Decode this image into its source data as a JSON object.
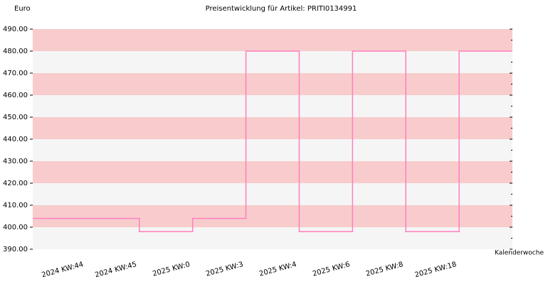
{
  "chart_data": {
    "type": "step",
    "title": "Preisentwicklung für Artikel: PRITI0134991",
    "y_label": "Euro",
    "x_label": "Kalenderwoche",
    "categories": [
      "2024 KW:44",
      "2024 KW:45",
      "2025 KW:0",
      "2025 KW:3",
      "2025 KW:4",
      "2025 KW:6",
      "2025 KW:8",
      "2025 KW:18"
    ],
    "values": [
      404,
      398,
      404,
      480,
      398,
      480,
      398,
      480
    ],
    "color": "#ff7fbf",
    "ylim": [
      390,
      490
    ],
    "yticks": [
      {
        "value": 390,
        "label": "390.00"
      },
      {
        "value": 400,
        "label": "400.00"
      },
      {
        "value": 410,
        "label": "410.00"
      },
      {
        "value": 420,
        "label": "420.00"
      },
      {
        "value": 430,
        "label": "430.00"
      },
      {
        "value": 440,
        "label": "440.00"
      },
      {
        "value": 450,
        "label": "450.00"
      },
      {
        "value": 460,
        "label": "460.00"
      },
      {
        "value": 470,
        "label": "470.00"
      },
      {
        "value": 480,
        "label": "480.00"
      },
      {
        "value": 490,
        "label": "490.00"
      }
    ],
    "yminorticks": [
      395,
      405,
      415,
      425,
      435,
      445,
      455,
      465,
      475,
      485
    ],
    "band_colors": [
      "#f5f5f5",
      "#f8cccc"
    ]
  }
}
